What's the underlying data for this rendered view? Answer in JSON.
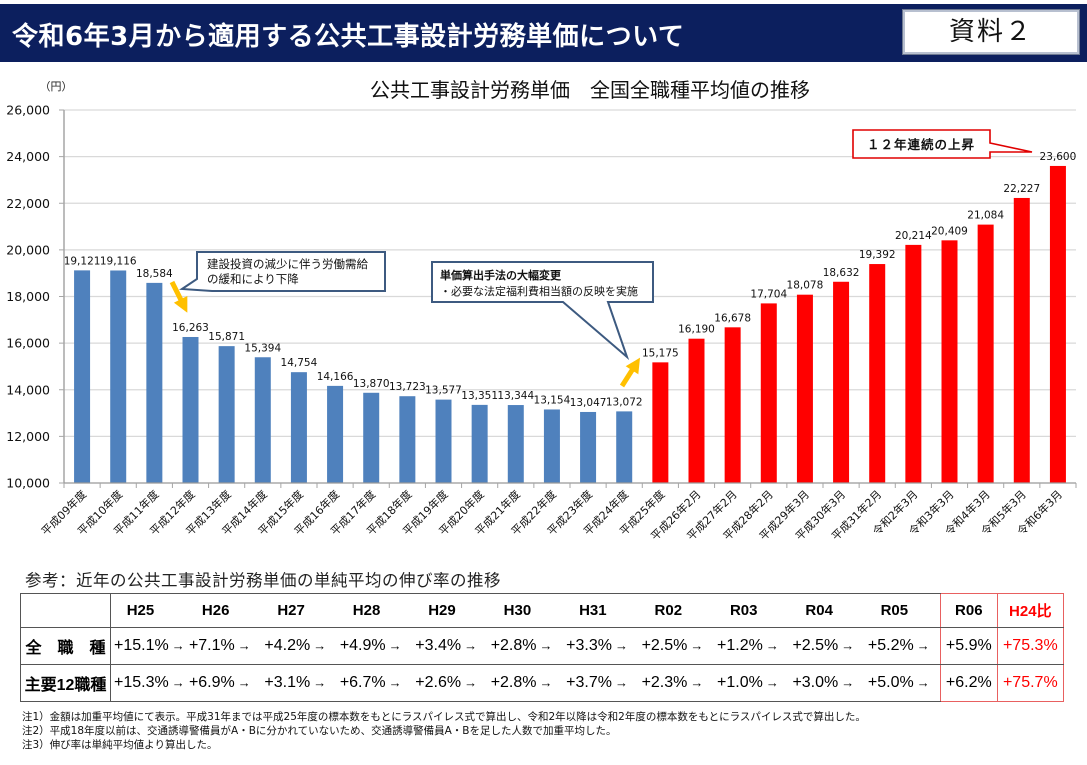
{
  "header": {
    "title": "令和6年3月から適用する公共工事設計労務単価について",
    "badge": "資料２"
  },
  "chart_data": {
    "type": "bar",
    "title": "公共工事設計労務単価　全国全職種平均値の推移",
    "xlabel": "",
    "ylabel": "（円）",
    "ylim": [
      10000,
      26000
    ],
    "yticks": [
      10000,
      12000,
      14000,
      16000,
      18000,
      20000,
      22000,
      24000,
      26000
    ],
    "ytick_labels": [
      "10,000",
      "12,000",
      "14,000",
      "16,000",
      "18,000",
      "20,000",
      "22,000",
      "24,000",
      "26,000"
    ],
    "grid": true,
    "legend": "none",
    "categories": [
      "平成09年度",
      "平成10年度",
      "平成11年度",
      "平成12年度",
      "平成13年度",
      "平成14年度",
      "平成15年度",
      "平成16年度",
      "平成17年度",
      "平成18年度",
      "平成19年度",
      "平成20年度",
      "平成21年度",
      "平成22年度",
      "平成23年度",
      "平成24年度",
      "平成25年度",
      "平成26年2月",
      "平成27年2月",
      "平成28年2月",
      "平成29年3月",
      "平成30年3月",
      "平成31年2月",
      "令和2年3月",
      "令和3年3月",
      "令和4年3月",
      "令和5年3月",
      "令和6年3月"
    ],
    "values": [
      19121,
      19116,
      18584,
      16263,
      15871,
      15394,
      14754,
      14166,
      13870,
      13723,
      13577,
      13351,
      13344,
      13154,
      13047,
      13072,
      15175,
      16190,
      16678,
      17704,
      18078,
      18632,
      19392,
      20214,
      20409,
      21084,
      22227,
      23600
    ],
    "color_groups": [
      {
        "start_index": 0,
        "end_index": 15,
        "color": "#4f81bd"
      },
      {
        "start_index": 16,
        "end_index": 27,
        "color": "#ff0000"
      }
    ],
    "annotations": [
      {
        "lines": [
          "建設投資の減少に伴う労働需給",
          "の緩和により下降"
        ],
        "target": "平成12年度",
        "border_color": "#3d5a80"
      },
      {
        "lines": [
          "単価算出手法の大幅変更",
          "・必要な法定福利費相当額の反映を実施"
        ],
        "target": "平成25年度",
        "border_color": "#3d5a80"
      },
      {
        "lines": [
          "１２年連続の上昇"
        ],
        "target": "令和6年3月",
        "border_color": "#e00000"
      }
    ],
    "arrow_color": "#ffc000"
  },
  "table": {
    "caption": "参考：近年の公共工事設計労務単価の単純平均の伸び率の推移",
    "arrow": "→",
    "columns": [
      "H25",
      "H26",
      "H27",
      "H28",
      "H29",
      "H30",
      "H31",
      "R02",
      "R03",
      "R04",
      "R05",
      "R06"
    ],
    "total_column": "H24比",
    "rows": [
      {
        "label": "全　職　種",
        "values": [
          "+15.1%",
          "+7.1%",
          "+4.2%",
          "+4.9%",
          "+3.4%",
          "+2.8%",
          "+3.3%",
          "+2.5%",
          "+1.2%",
          "+2.5%",
          "+5.2%",
          "+5.9%"
        ],
        "total": "+75.3%"
      },
      {
        "label": "主要12職種",
        "values": [
          "+15.3%",
          "+6.9%",
          "+3.1%",
          "+6.7%",
          "+2.6%",
          "+2.8%",
          "+3.7%",
          "+2.3%",
          "+1.0%",
          "+3.0%",
          "+5.0%",
          "+6.2%"
        ],
        "total": "+75.7%"
      }
    ],
    "highlight_color": "#ff0000"
  },
  "notes": [
    "注1）金額は加重平均値にて表示。平成31年までは平成25年度の標本数をもとにラスパイレス式で算出し、令和2年以降は令和2年度の標本数をもとにラスパイレス式で算出した。",
    "注2）平成18年度以前は、交通誘導警備員がA・Bに分かれていないため、交通誘導警備員A・Bを足した人数で加重平均した。",
    "注3）伸び率は単純平均値より算出した。"
  ]
}
